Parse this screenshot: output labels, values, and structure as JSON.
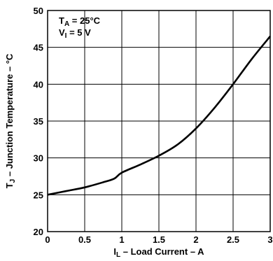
{
  "chart_data": {
    "type": "line",
    "title": "",
    "xlabel": {
      "main": "I",
      "sub": "L",
      "rest": " – Load Current – A"
    },
    "ylabel": {
      "main": "T",
      "sub": "J",
      "rest": " – Junction Temperature – °C"
    },
    "xlim": [
      0,
      3
    ],
    "ylim": [
      20,
      50
    ],
    "xticks": [
      "0",
      "0.5",
      "1",
      "1.5",
      "2",
      "2.5",
      "3"
    ],
    "yticks": [
      "20",
      "25",
      "30",
      "35",
      "40",
      "45",
      "50"
    ],
    "grid": true,
    "annotations": [
      {
        "main": "T",
        "sub": "A",
        "rest": " = 25°C"
      },
      {
        "main": "V",
        "sub": "I",
        "rest": " = 5 V"
      }
    ],
    "series": [
      {
        "x": [
          0,
          0.25,
          0.5,
          0.75,
          0.9,
          1.0,
          1.25,
          1.5,
          1.75,
          2.0,
          2.25,
          2.5,
          2.75,
          3.0
        ],
        "y": [
          25.0,
          25.5,
          26.0,
          26.7,
          27.2,
          28.0,
          29.1,
          30.3,
          31.8,
          34.0,
          36.8,
          40.0,
          43.4,
          46.5
        ]
      }
    ]
  }
}
